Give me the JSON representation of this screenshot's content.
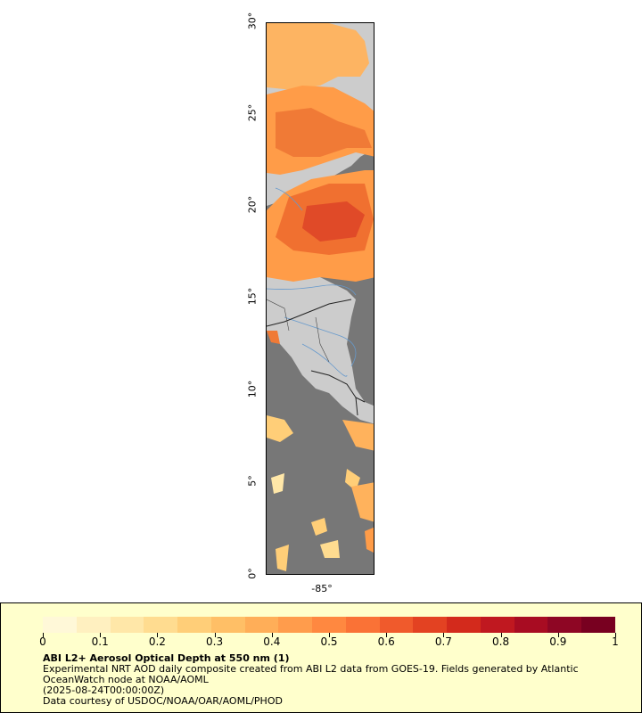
{
  "map": {
    "lat_ticks": [
      "0°",
      "5°",
      "10°",
      "15°",
      "20°",
      "25°",
      "30°"
    ],
    "lon_ticks": [
      "-85°"
    ],
    "colors": {
      "land": "#cccccc",
      "no_data": "#777777",
      "border": "#333333",
      "river": "#6699cc"
    }
  },
  "legend": {
    "scale_ticks": [
      "0",
      "0.1",
      "0.2",
      "0.3",
      "0.4",
      "0.5",
      "0.6",
      "0.7",
      "0.8",
      "0.9",
      "1"
    ],
    "title": "ABI L2+ Aerosol Optical Depth at 550 nm (1)",
    "line1": "Experimental NRT AOD daily composite created from ABI L2 data from GOES-19. Fields generated by Atlantic",
    "line2": "OceanWatch node at NOAA/AOML",
    "line3": "(2025-08-24T00:00:00Z)",
    "line4": "Data courtesy of USDOC/NOAA/OAR/AOML/PHOD",
    "colorbar": [
      "#fff8d8",
      "#fff0c0",
      "#ffe7a8",
      "#ffdc90",
      "#ffce78",
      "#ffbf66",
      "#ffae58",
      "#ff9c4c",
      "#ff8840",
      "#fa7236",
      "#f05a2c",
      "#e34222",
      "#d32a1c",
      "#c01820",
      "#a80c22",
      "#8e0624",
      "#780020"
    ]
  }
}
